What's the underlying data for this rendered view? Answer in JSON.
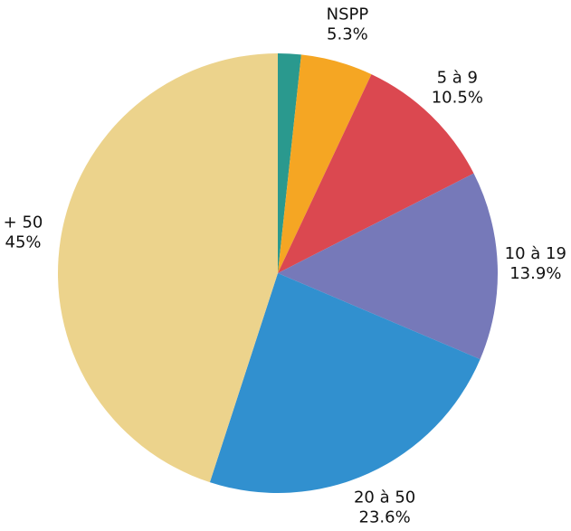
{
  "chart_data": {
    "type": "pie",
    "categories": [
      null,
      "NSPP",
      "5 à 9",
      "10 à 19",
      "20 à 50",
      "+ 50"
    ],
    "values": [
      1.7,
      5.3,
      10.5,
      13.9,
      23.6,
      45
    ],
    "value_labels": [
      null,
      "5.3%",
      "10.5%",
      "13.9%",
      "23.6%",
      "45%"
    ],
    "colors": [
      "#2a998e",
      "#f5a623",
      "#db4850",
      "#7679b9",
      "#3190cf",
      "#ecd38c"
    ],
    "start_angle": 0,
    "direction": "clockwise"
  }
}
